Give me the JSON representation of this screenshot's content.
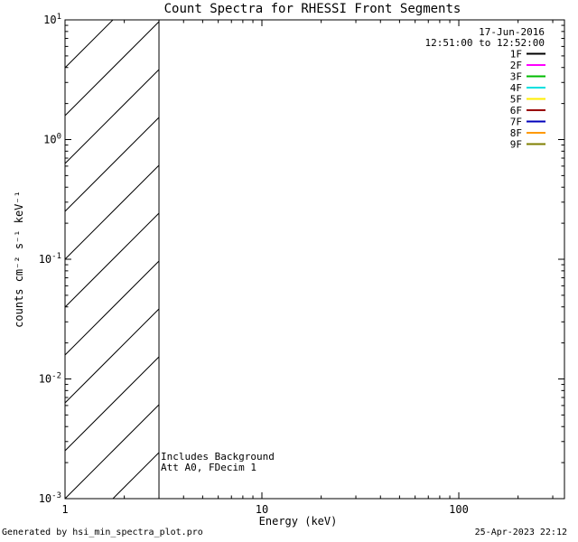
{
  "window_title": "Count Spectra for RHESSI Front Segments",
  "footer": {
    "left": "Generated by hsi_min_spectra_plot.pro",
    "right": "25-Apr-2023 22:12"
  },
  "chart_data": {
    "type": "line",
    "title": "Count Spectra for RHESSI Front Segments",
    "xlabel": "Energy (keV)",
    "ylabel": "counts cm⁻² s⁻¹ keV⁻¹",
    "x_scale": "log",
    "y_scale": "log",
    "xlim": [
      1,
      344
    ],
    "ylim": [
      0.001,
      10
    ],
    "x_ticks": [
      1,
      10,
      100
    ],
    "y_ticks": [
      10,
      1,
      0.1,
      0.01,
      0.001
    ],
    "grid": false,
    "legend_position": "top-right-inside",
    "legend": {
      "date": "17-Jun-2016",
      "time_range": "12:51:00 to 12:52:00",
      "entries": [
        {
          "label": "1F",
          "color": "#000000"
        },
        {
          "label": "2F",
          "color": "#ff00ff"
        },
        {
          "label": "3F",
          "color": "#00bb00"
        },
        {
          "label": "4F",
          "color": "#00e0e0"
        },
        {
          "label": "5F",
          "color": "#ffee00"
        },
        {
          "label": "6F",
          "color": "#990000"
        },
        {
          "label": "7F",
          "color": "#0000bb"
        },
        {
          "label": "8F",
          "color": "#ff9900"
        },
        {
          "label": "9F",
          "color": "#7f7f00"
        }
      ]
    },
    "series": [],
    "background_region": {
      "x_from": 1,
      "x_to": 3,
      "style": "diagonal-hatch"
    },
    "annotations": [
      "Includes Background",
      "Att A0, FDecim 1"
    ]
  }
}
